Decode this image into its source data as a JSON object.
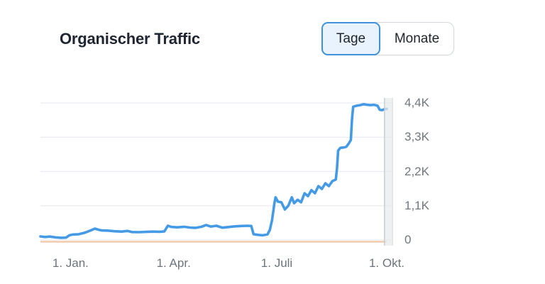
{
  "header": {
    "title": "Organischer Traffic",
    "toggle": {
      "days_label": "Tage",
      "months_label": "Monate",
      "selected": "Tage"
    }
  },
  "colors": {
    "accent_blue": "#459ae6",
    "selected_segment_bg": "#e8f3fd",
    "selected_segment_border": "#3f93da",
    "secondary_orange": "#f1c7a8",
    "grid": "#e9ecf1",
    "axis_text": "#71777e",
    "title_text": "#1f2531",
    "highlight_bar": "#e7eaeb",
    "highlight_edge": "#c6cbd0"
  },
  "chart_data": {
    "type": "line",
    "title": "Organischer Traffic",
    "xlabel": "",
    "ylabel": "",
    "grid": "horizontal",
    "legend": "none",
    "x_tick_labels": [
      "1. Jan.",
      "1. Apr.",
      "1. Juli",
      "1. Okt."
    ],
    "x_tick_days": [
      26,
      115,
      204,
      299
    ],
    "y_tick_labels": [
      "0",
      "1,1K",
      "2,2K",
      "3,3K",
      "4,4K"
    ],
    "y_tick_values": [
      0,
      1100,
      2200,
      3300,
      4400
    ],
    "x_domain_days": [
      0,
      304
    ],
    "ylim": [
      0,
      4510
    ],
    "current_period_highlight_days": [
      297,
      304
    ],
    "series": [
      {
        "name": "Organischer Traffic",
        "color": "#459ae6",
        "points": [
          [
            0,
            115
          ],
          [
            4,
            95
          ],
          [
            8,
            110
          ],
          [
            13,
            85
          ],
          [
            18,
            70
          ],
          [
            22,
            75
          ],
          [
            25,
            150
          ],
          [
            28,
            175
          ],
          [
            33,
            185
          ],
          [
            38,
            230
          ],
          [
            43,
            300
          ],
          [
            47,
            365
          ],
          [
            50,
            330
          ],
          [
            53,
            305
          ],
          [
            58,
            300
          ],
          [
            64,
            280
          ],
          [
            70,
            270
          ],
          [
            75,
            290
          ],
          [
            79,
            255
          ],
          [
            85,
            250
          ],
          [
            91,
            260
          ],
          [
            97,
            270
          ],
          [
            103,
            265
          ],
          [
            107,
            275
          ],
          [
            110,
            455
          ],
          [
            113,
            420
          ],
          [
            118,
            405
          ],
          [
            124,
            425
          ],
          [
            129,
            400
          ],
          [
            134,
            390
          ],
          [
            139,
            425
          ],
          [
            143,
            480
          ],
          [
            147,
            430
          ],
          [
            152,
            455
          ],
          [
            157,
            395
          ],
          [
            162,
            415
          ],
          [
            167,
            435
          ],
          [
            173,
            450
          ],
          [
            179,
            455
          ],
          [
            182,
            450
          ],
          [
            184,
            185
          ],
          [
            188,
            165
          ],
          [
            192,
            150
          ],
          [
            196,
            180
          ],
          [
            198,
            320
          ],
          [
            200,
            640
          ],
          [
            202,
            1180
          ],
          [
            203,
            1370
          ],
          [
            205,
            1230
          ],
          [
            208,
            1210
          ],
          [
            211,
            980
          ],
          [
            214,
            1100
          ],
          [
            217,
            1370
          ],
          [
            219,
            1180
          ],
          [
            222,
            1290
          ],
          [
            225,
            1210
          ],
          [
            228,
            1500
          ],
          [
            231,
            1410
          ],
          [
            234,
            1600
          ],
          [
            237,
            1500
          ],
          [
            240,
            1730
          ],
          [
            243,
            1640
          ],
          [
            246,
            1820
          ],
          [
            249,
            1730
          ],
          [
            252,
            1890
          ],
          [
            255,
            1940
          ],
          [
            256,
            2300
          ],
          [
            257,
            2870
          ],
          [
            259,
            2960
          ],
          [
            262,
            2970
          ],
          [
            264,
            2990
          ],
          [
            266,
            3090
          ],
          [
            268,
            3210
          ],
          [
            269,
            3900
          ],
          [
            270,
            4280
          ],
          [
            273,
            4310
          ],
          [
            276,
            4330
          ],
          [
            279,
            4360
          ],
          [
            282,
            4340
          ],
          [
            285,
            4330
          ],
          [
            288,
            4340
          ],
          [
            291,
            4310
          ],
          [
            293,
            4180
          ],
          [
            295,
            4170
          ],
          [
            297,
            4200
          ],
          [
            299,
            4210
          ]
        ]
      },
      {
        "name": "",
        "color": "#f1c7a8",
        "points": [
          [
            0,
            0
          ],
          [
            299,
            0
          ]
        ]
      }
    ]
  }
}
